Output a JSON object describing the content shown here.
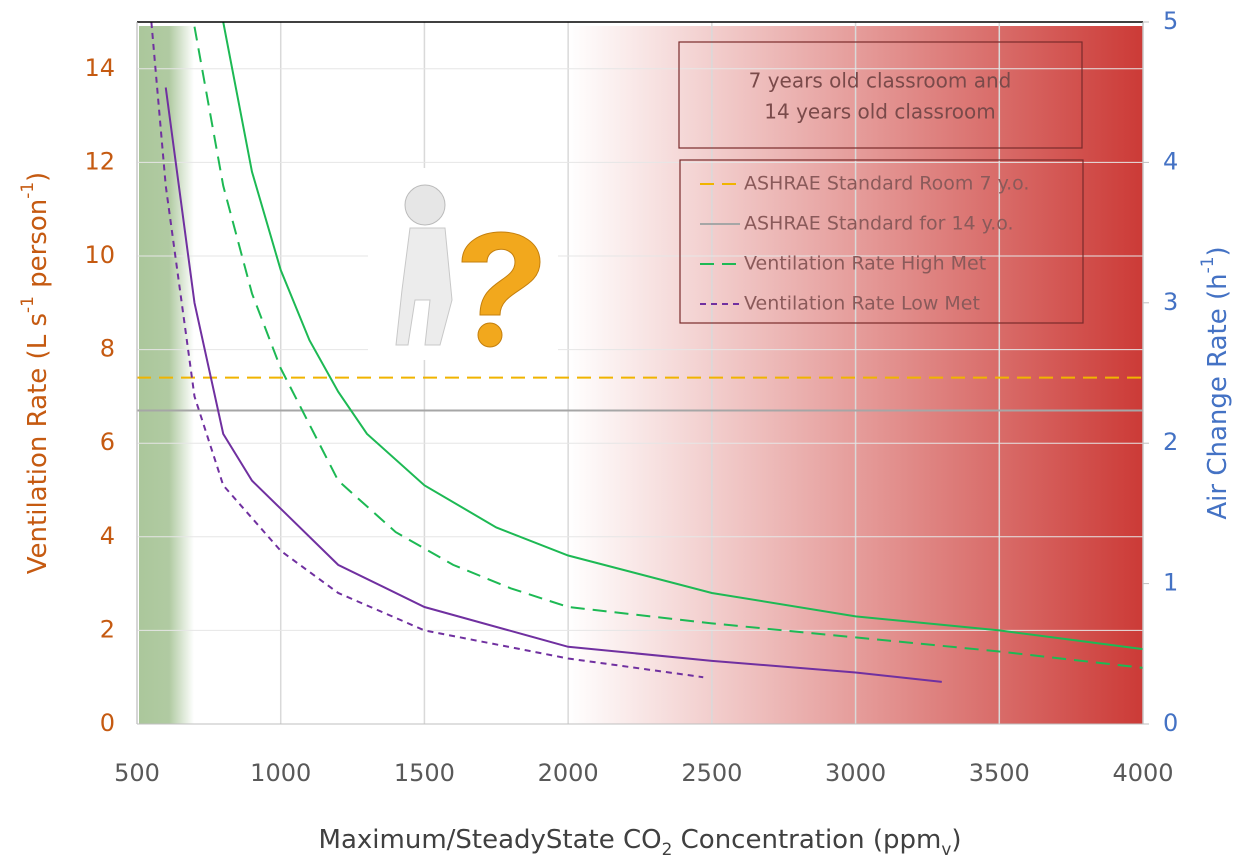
{
  "chart_data": {
    "type": "line",
    "xlabel": [
      "Maximum/SteadyState CO",
      "2",
      " Concentration (ppm",
      "v",
      ")"
    ],
    "ylabel": [
      "Ventilation Rate (L s",
      "-1",
      " person",
      "-1",
      ")"
    ],
    "y2label": [
      "Air Change Rate (h",
      "-1",
      ")"
    ],
    "annotation": [
      "7 years old classroom and",
      "14 years old classroom"
    ],
    "xlim": [
      500,
      4000
    ],
    "xticks": [
      500,
      1000,
      1500,
      2000,
      2500,
      3000,
      3500,
      4000
    ],
    "ylim": [
      0,
      15
    ],
    "yticks": [
      0,
      2,
      4,
      6,
      8,
      10,
      12,
      14
    ],
    "y2lim": [
      0,
      5
    ],
    "y2ticks": [
      0,
      1,
      2,
      3,
      4,
      5
    ],
    "grid": true,
    "series": [
      {
        "name": "ASHRAE Standard Room 7 y.o.",
        "color": "#f0b400",
        "dash": "long",
        "x": [
          500,
          4000
        ],
        "values": [
          7.4,
          7.4
        ]
      },
      {
        "name": "ASHRAE Standard for 14 y.o.",
        "color": "#a6a6a6",
        "dash": "solid",
        "x": [
          500,
          4000
        ],
        "values": [
          6.7,
          6.7
        ]
      },
      {
        "name": "Ventilation Rate High Met",
        "color": "#1db954",
        "dash": "long",
        "x": [
          700,
          800,
          900,
          1000,
          1200,
          1400,
          1600,
          1800,
          2000,
          2500,
          3000,
          3500,
          4000
        ],
        "values": [
          14.9,
          11.5,
          9.2,
          7.6,
          5.2,
          4.1,
          3.4,
          2.9,
          2.5,
          2.15,
          1.85,
          1.55,
          1.2
        ]
      },
      {
        "name": "Ventilation Rate Low Met",
        "color": "#7030a0",
        "dash": "short",
        "x": [
          550,
          600,
          700,
          800,
          1000,
          1200,
          1500,
          2000,
          2470
        ],
        "values": [
          15,
          11.5,
          7.0,
          5.1,
          3.7,
          2.8,
          2.0,
          1.4,
          1.0
        ]
      },
      {
        "color": "#1db954",
        "dash": "solid",
        "x": [
          800,
          900,
          1000,
          1100,
          1200,
          1300,
          1500,
          1750,
          2000,
          2500,
          3000,
          3500,
          4000
        ],
        "values": [
          15,
          11.8,
          9.7,
          8.2,
          7.1,
          6.2,
          5.1,
          4.2,
          3.6,
          2.8,
          2.3,
          2.0,
          1.6
        ]
      },
      {
        "color": "#7030a0",
        "dash": "solid",
        "x": [
          600,
          700,
          800,
          900,
          1000,
          1200,
          1500,
          2000,
          2500,
          3000,
          3300
        ],
        "values": [
          13.6,
          9.0,
          6.2,
          5.2,
          4.6,
          3.4,
          2.5,
          1.65,
          1.35,
          1.1,
          0.9
        ]
      }
    ]
  }
}
